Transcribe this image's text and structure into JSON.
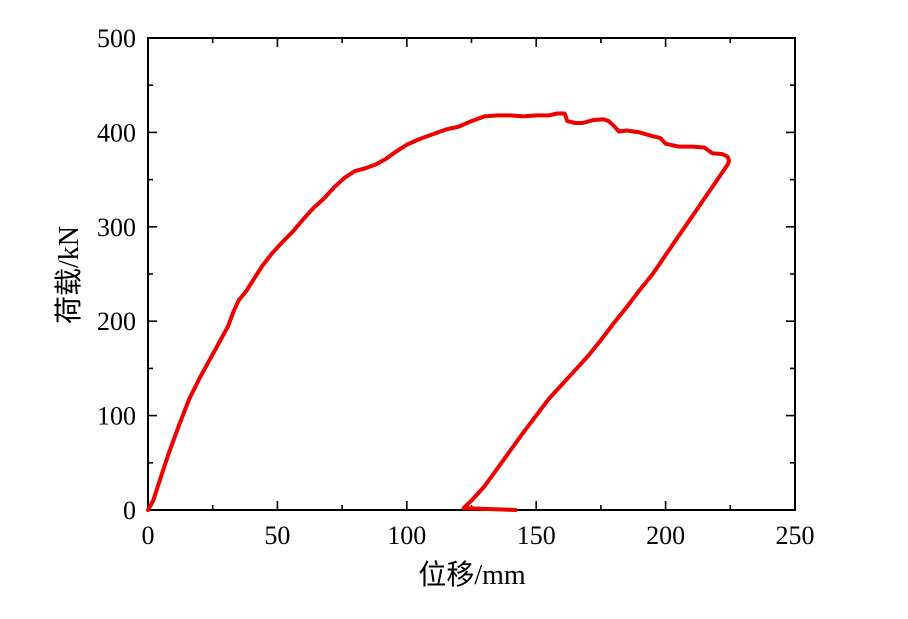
{
  "chart_data": {
    "type": "line",
    "title": "",
    "xlabel": "位移/mm",
    "ylabel": "荷载/kN",
    "xlim": [
      0,
      250
    ],
    "ylim": [
      0,
      500
    ],
    "xticks": [
      0,
      50,
      100,
      150,
      200,
      250
    ],
    "yticks": [
      0,
      100,
      200,
      300,
      400,
      500
    ],
    "grid": false,
    "legend": "none",
    "series": [
      {
        "color": "#ee0000",
        "points": [
          [
            0,
            0
          ],
          [
            2,
            10
          ],
          [
            5,
            35
          ],
          [
            8,
            60
          ],
          [
            12,
            90
          ],
          [
            16,
            118
          ],
          [
            20,
            140
          ],
          [
            24,
            160
          ],
          [
            28,
            180
          ],
          [
            31,
            195
          ],
          [
            33,
            210
          ],
          [
            35,
            222
          ],
          [
            38,
            232
          ],
          [
            41,
            245
          ],
          [
            44,
            258
          ],
          [
            48,
            272
          ],
          [
            52,
            284
          ],
          [
            56,
            295
          ],
          [
            60,
            308
          ],
          [
            64,
            320
          ],
          [
            68,
            330
          ],
          [
            72,
            342
          ],
          [
            76,
            352
          ],
          [
            80,
            359
          ],
          [
            84,
            362
          ],
          [
            88,
            366
          ],
          [
            92,
            372
          ],
          [
            96,
            380
          ],
          [
            100,
            387
          ],
          [
            105,
            393
          ],
          [
            110,
            398
          ],
          [
            115,
            403
          ],
          [
            120,
            406
          ],
          [
            125,
            412
          ],
          [
            130,
            417
          ],
          [
            135,
            418
          ],
          [
            140,
            418
          ],
          [
            145,
            417
          ],
          [
            150,
            418
          ],
          [
            155,
            418
          ],
          [
            158,
            420
          ],
          [
            161,
            420
          ],
          [
            162,
            412
          ],
          [
            165,
            410
          ],
          [
            168,
            410
          ],
          [
            172,
            413
          ],
          [
            176,
            414
          ],
          [
            178,
            412
          ],
          [
            180,
            407
          ],
          [
            182,
            401
          ],
          [
            185,
            402
          ],
          [
            190,
            400
          ],
          [
            195,
            396
          ],
          [
            198,
            394
          ],
          [
            200,
            388
          ],
          [
            205,
            385
          ],
          [
            210,
            385
          ],
          [
            215,
            384
          ],
          [
            218,
            378
          ],
          [
            222,
            377
          ],
          [
            224,
            374
          ],
          [
            224.5,
            370
          ],
          [
            224,
            366
          ],
          [
            220,
            350
          ],
          [
            215,
            330
          ],
          [
            210,
            310
          ],
          [
            205,
            290
          ],
          [
            200,
            270
          ],
          [
            195,
            250
          ],
          [
            190,
            233
          ],
          [
            185,
            215
          ],
          [
            180,
            198
          ],
          [
            175,
            180
          ],
          [
            170,
            163
          ],
          [
            165,
            148
          ],
          [
            160,
            133
          ],
          [
            155,
            118
          ],
          [
            150,
            100
          ],
          [
            145,
            82
          ],
          [
            140,
            63
          ],
          [
            135,
            44
          ],
          [
            130,
            25
          ],
          [
            125,
            10
          ],
          [
            122,
            2
          ],
          [
            142,
            0
          ]
        ]
      }
    ]
  }
}
